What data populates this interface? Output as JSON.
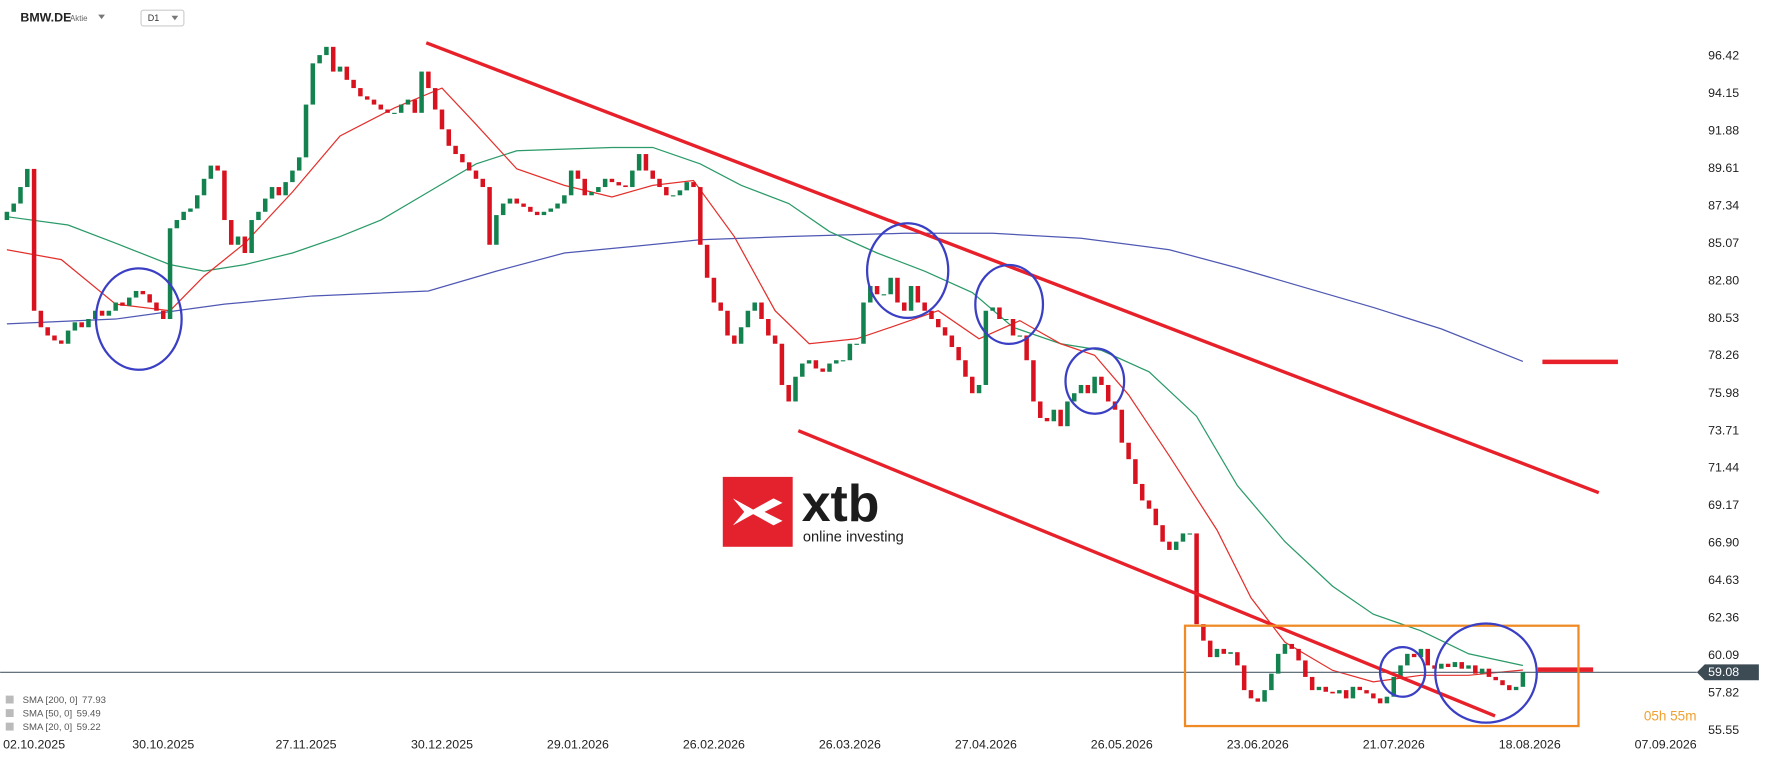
{
  "header": {
    "symbol": "BMW.DE",
    "kind": "Aktie",
    "interval": "D1",
    "timer": "05h 55m"
  },
  "logo": {
    "brand": "xtb",
    "tagline": "online investing"
  },
  "chart_data": {
    "type": "candlestick",
    "categories": [
      null,
      null,
      null,
      null,
      "02.10.2025",
      null,
      null,
      null,
      null,
      null,
      null,
      null,
      null,
      null,
      null,
      null,
      null,
      null,
      null,
      null,
      null,
      null,
      null,
      "30.10.2025",
      null,
      null,
      null,
      null,
      null,
      null,
      null,
      null,
      null,
      null,
      null,
      null,
      null,
      null,
      null,
      null,
      null,
      null,
      null,
      null,
      "27.11.2025",
      null,
      null,
      null,
      null,
      null,
      null,
      null,
      null,
      null,
      null,
      null,
      null,
      null,
      null,
      null,
      null,
      null,
      null,
      null,
      "30.12.2025",
      null,
      null,
      null,
      null,
      null,
      null,
      null,
      null,
      null,
      null,
      null,
      null,
      null,
      null,
      null,
      null,
      null,
      null,
      null,
      "29.01.2026",
      null,
      null,
      null,
      null,
      null,
      null,
      null,
      null,
      null,
      null,
      null,
      null,
      null,
      null,
      null,
      null,
      null,
      null,
      null,
      "26.02.2026",
      null,
      null,
      null,
      null,
      null,
      null,
      null,
      null,
      null,
      null,
      null,
      null,
      null,
      null,
      null,
      null,
      null,
      null,
      null,
      "26.03.2026",
      null,
      null,
      null,
      null,
      null,
      null,
      null,
      null,
      null,
      null,
      null,
      null,
      null,
      null,
      null,
      null,
      null,
      null,
      null,
      "27.04.2026",
      null,
      null,
      null,
      null,
      null,
      null,
      null,
      null,
      null,
      null,
      null,
      null,
      null,
      null,
      null,
      null,
      null,
      null,
      null,
      "26.05.2026",
      null,
      null,
      null,
      null,
      null,
      null,
      null,
      null,
      null,
      null,
      null,
      null,
      null,
      null,
      null,
      null,
      null,
      null,
      null,
      "23.06.2026",
      null,
      null,
      null,
      null,
      null,
      null,
      null,
      null,
      null,
      null,
      null,
      null,
      null,
      null,
      null,
      null,
      null,
      null,
      null,
      "21.07.2026",
      null,
      null,
      null,
      null,
      null,
      null,
      null,
      null,
      null,
      null,
      null,
      null,
      null,
      null,
      null,
      null,
      null,
      null,
      null,
      "18.08.2026",
      null,
      null,
      null,
      null,
      null,
      null,
      null,
      null,
      null,
      null,
      null,
      null,
      null,
      null,
      null,
      null,
      null,
      null,
      null,
      "07.09.2026",
      null,
      null,
      null
    ],
    "open": [
      86.5,
      87.0,
      87.5,
      88.5,
      89.6,
      81.0,
      80.0,
      79.5,
      79.2,
      79.0,
      79.8,
      80.3,
      80.0,
      80.5,
      81.0,
      80.7,
      81.0,
      81.5,
      81.3,
      81.8,
      82.2,
      82.0,
      81.5,
      81.0,
      80.5,
      86.0,
      86.5,
      87.0,
      87.2,
      88.0,
      89.0,
      89.8,
      89.5,
      86.5,
      85.0,
      85.5,
      84.5,
      86.5,
      87.0,
      87.8,
      88.5,
      88.0,
      88.8,
      89.5,
      90.3,
      93.5,
      96.0,
      96.5,
      97.0,
      95.5,
      95.8,
      95.0,
      94.5,
      94.0,
      93.8,
      93.5,
      93.2,
      93.0,
      93.0,
      93.5,
      93.8,
      93.0,
      95.5,
      94.5,
      93.2,
      92.0,
      91.0,
      90.5,
      90.0,
      89.5,
      89.0,
      88.5,
      85.0,
      86.8,
      87.5,
      87.8,
      87.5,
      87.3,
      87.0,
      86.8,
      87.0,
      87.2,
      87.5,
      88.0,
      89.5,
      89.0,
      88.0,
      88.2,
      88.5,
      89.0,
      88.8,
      88.6,
      88.5,
      89.5,
      90.5,
      89.5,
      89.0,
      88.5,
      88.0,
      88.0,
      88.3,
      88.8,
      88.5,
      85.0,
      83.0,
      81.5,
      81.0,
      79.5,
      79.0,
      80.0,
      81.0,
      81.5,
      80.5,
      79.5,
      79.0,
      76.5,
      75.5,
      77.0,
      77.8,
      78.0,
      77.5,
      77.3,
      77.8,
      78.0,
      78.0,
      79.0,
      79.0,
      81.5,
      82.5,
      82.0,
      82.0,
      83.0,
      81.5,
      81.0,
      82.5,
      81.5,
      81.0,
      80.5,
      80.0,
      79.5,
      78.8,
      78.0,
      77.0,
      76.0,
      76.5,
      81.0,
      81.2,
      80.5,
      80.5,
      79.5,
      79.5,
      78.0,
      75.5,
      74.5,
      74.3,
      75.0,
      74.0,
      75.5,
      76.0,
      76.5,
      76.0,
      77.0,
      76.5,
      75.5,
      75.0,
      73.0,
      72.0,
      70.5,
      69.5,
      69.0,
      68.0,
      67.0,
      66.5,
      67.0,
      67.5,
      67.5,
      62.0,
      61.0,
      60.0,
      60.5,
      60.2,
      60.3,
      59.5,
      58.0,
      57.5,
      57.3,
      58.0,
      59.0,
      60.2,
      60.8,
      60.5,
      59.8,
      58.8,
      58.0,
      58.2,
      57.9,
      57.8,
      58.0,
      57.5,
      58.2,
      58.0,
      57.8,
      57.5,
      57.2,
      57.6,
      58.8,
      59.5,
      60.2,
      60.0,
      60.5,
      59.5,
      59.3,
      59.6,
      59.4,
      59.7,
      59.3,
      59.5,
      59.0,
      59.3,
      58.8,
      58.6,
      58.3,
      58.0,
      58.2,
      null,
      null,
      null,
      null,
      null,
      null,
      null,
      null,
      null,
      null,
      null,
      null,
      null,
      null,
      null,
      null,
      null,
      null,
      null,
      null,
      null,
      null,
      null,
      null
    ],
    "close": [
      87.0,
      87.5,
      88.5,
      89.6,
      81.0,
      80.0,
      79.5,
      79.2,
      79.0,
      79.8,
      80.3,
      80.0,
      80.5,
      81.0,
      80.7,
      81.0,
      81.5,
      81.3,
      81.8,
      82.2,
      82.0,
      81.5,
      81.0,
      80.5,
      86.0,
      86.5,
      87.0,
      87.2,
      88.0,
      89.0,
      89.8,
      89.5,
      86.5,
      85.0,
      85.5,
      84.5,
      86.5,
      87.0,
      87.8,
      88.5,
      88.0,
      88.8,
      89.5,
      90.3,
      93.5,
      96.0,
      96.5,
      97.0,
      95.5,
      95.8,
      95.0,
      94.5,
      94.0,
      93.8,
      93.5,
      93.2,
      93.0,
      93.0,
      93.5,
      93.8,
      93.0,
      95.5,
      94.5,
      93.2,
      92.0,
      91.0,
      90.5,
      90.0,
      89.5,
      89.0,
      88.5,
      85.0,
      86.8,
      87.5,
      87.8,
      87.5,
      87.3,
      87.0,
      86.8,
      87.0,
      87.2,
      87.5,
      88.0,
      89.5,
      89.0,
      88.0,
      88.2,
      88.5,
      89.0,
      88.8,
      88.6,
      88.5,
      89.5,
      90.5,
      89.5,
      89.0,
      88.5,
      88.0,
      88.0,
      88.3,
      88.8,
      88.5,
      85.0,
      83.0,
      81.5,
      81.0,
      79.5,
      79.0,
      80.0,
      81.0,
      81.5,
      80.5,
      79.5,
      79.0,
      76.5,
      75.5,
      77.0,
      77.8,
      78.0,
      77.5,
      77.3,
      77.8,
      78.0,
      78.0,
      79.0,
      79.0,
      81.5,
      82.5,
      82.0,
      82.0,
      83.0,
      81.5,
      81.0,
      82.5,
      81.5,
      81.0,
      80.5,
      80.0,
      79.5,
      78.8,
      78.0,
      77.0,
      76.0,
      76.5,
      81.0,
      81.2,
      80.5,
      80.5,
      79.5,
      79.5,
      78.0,
      75.5,
      74.5,
      74.3,
      75.0,
      74.0,
      75.5,
      76.0,
      76.5,
      76.0,
      77.0,
      76.5,
      75.5,
      75.0,
      73.0,
      72.0,
      70.5,
      69.5,
      69.0,
      68.0,
      67.0,
      66.5,
      67.0,
      67.5,
      67.5,
      62.0,
      61.0,
      60.0,
      60.5,
      60.2,
      60.3,
      59.5,
      58.0,
      57.5,
      57.3,
      58.0,
      59.0,
      60.2,
      60.8,
      60.5,
      59.8,
      58.8,
      58.0,
      58.2,
      57.9,
      57.8,
      58.0,
      57.5,
      58.2,
      58.0,
      57.8,
      57.5,
      57.2,
      57.6,
      58.8,
      59.5,
      60.2,
      60.0,
      60.5,
      59.5,
      59.3,
      59.6,
      59.4,
      59.7,
      59.3,
      59.5,
      59.0,
      59.3,
      58.8,
      58.6,
      58.3,
      58.0,
      58.2,
      59.08,
      null,
      null,
      null,
      null,
      null,
      null,
      null,
      null,
      null,
      null,
      null,
      null,
      null,
      null,
      null,
      null,
      null,
      null,
      null,
      null,
      null,
      null,
      null,
      null
    ],
    "up_color": "#13824f",
    "down_color": "#d8131f",
    "series": [
      {
        "name": "SMA [200, 0]",
        "color": "#4f58b3",
        "x": [
          0,
          16,
          32,
          45,
          62,
          72,
          82,
          92,
          102,
          115,
          132,
          145,
          158,
          171,
          181,
          191,
          201,
          211,
          223
        ],
        "values": [
          80.2,
          80.5,
          81.4,
          81.9,
          82.2,
          83.4,
          84.5,
          84.9,
          85.3,
          85.5,
          85.7,
          85.7,
          85.4,
          84.7,
          83.6,
          82.4,
          81.2,
          79.9,
          77.93
        ]
      },
      {
        "name": "SMA [50, 0]",
        "color": "#2a9a68",
        "x": [
          0,
          9,
          16,
          24,
          29,
          35,
          42,
          49,
          55,
          62,
          69,
          75,
          82,
          89,
          95,
          102,
          108,
          115,
          121,
          128,
          135,
          142,
          148,
          155,
          161,
          168,
          175,
          181,
          188,
          195,
          201,
          208,
          215,
          223
        ],
        "values": [
          86.7,
          86.2,
          85.1,
          83.8,
          83.4,
          83.8,
          84.5,
          85.5,
          86.5,
          88.2,
          89.9,
          90.7,
          90.8,
          90.9,
          90.9,
          89.9,
          88.6,
          87.5,
          85.8,
          84.5,
          83.4,
          82.1,
          80.0,
          79.0,
          78.6,
          77.3,
          74.6,
          70.4,
          67.0,
          64.3,
          62.6,
          61.6,
          60.2,
          59.49
        ]
      },
      {
        "name": "SMA [20, 0]",
        "color": "#e3302c",
        "x": [
          0,
          8,
          16,
          24,
          29,
          35,
          42,
          49,
          57,
          64,
          69,
          75,
          82,
          89,
          95,
          101,
          107,
          113,
          118,
          125,
          130,
          137,
          143,
          149,
          155,
          160,
          165,
          171,
          178,
          183,
          188,
          195,
          201,
          208,
          215,
          223
        ],
        "values": [
          84.7,
          84.1,
          81.4,
          81.0,
          83.1,
          85.1,
          88.2,
          91.6,
          93.3,
          94.5,
          92.3,
          89.6,
          88.6,
          87.9,
          88.6,
          88.9,
          85.5,
          81.0,
          79.0,
          79.3,
          80.0,
          81.0,
          79.3,
          80.4,
          79.0,
          78.3,
          75.9,
          72.2,
          67.7,
          63.6,
          60.9,
          59.2,
          58.5,
          58.9,
          58.9,
          59.22
        ]
      }
    ],
    "ylim": [
      55.07,
      99.84
    ],
    "yticks": [
      96.42,
      94.15,
      91.88,
      89.61,
      87.34,
      85.07,
      {
        "value": 82.8,
        "label": "82.80"
      },
      80.53,
      78.26,
      75.98,
      73.71,
      71.44,
      69.17,
      {
        "value": 66.9,
        "label": "66.90"
      },
      64.63,
      62.36,
      60.09,
      57.82,
      55.55
    ],
    "grid": false
  }
}
